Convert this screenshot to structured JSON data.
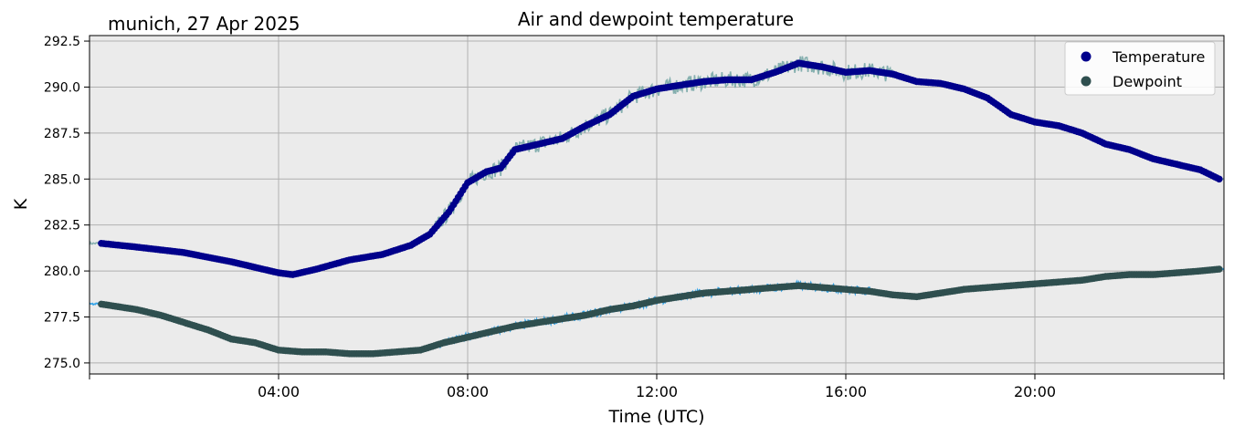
{
  "chart_data": {
    "type": "line",
    "title": "Air and dewpoint temperature",
    "subtitle": "munich, 27 Apr 2025",
    "xlabel": "Time (UTC)",
    "ylabel": "K",
    "xlim": [
      0,
      24
    ],
    "ylim": [
      274.4,
      292.8
    ],
    "grid": true,
    "legend_position": "top-right",
    "x_ticks": [
      {
        "value": 4,
        "label": "04:00"
      },
      {
        "value": 8,
        "label": "08:00"
      },
      {
        "value": 12,
        "label": "12:00"
      },
      {
        "value": 16,
        "label": "16:00"
      },
      {
        "value": 20,
        "label": "20:00"
      }
    ],
    "y_ticks": [
      {
        "value": 275.0,
        "label": "275.0"
      },
      {
        "value": 277.5,
        "label": "277.5"
      },
      {
        "value": 280.0,
        "label": "280.0"
      },
      {
        "value": 282.5,
        "label": "282.5"
      },
      {
        "value": 285.0,
        "label": "285.0"
      },
      {
        "value": 287.5,
        "label": "287.5"
      },
      {
        "value": 290.0,
        "label": "290.0"
      },
      {
        "value": 292.5,
        "label": "292.5"
      }
    ],
    "series": [
      {
        "name": "Temperature",
        "style": "markers",
        "color": "#00008b",
        "raw_color": "#7aa9a9",
        "x": [
          0.25,
          1.0,
          2.0,
          3.0,
          3.5,
          4.0,
          4.3,
          4.8,
          5.5,
          6.2,
          6.8,
          7.2,
          7.6,
          8.0,
          8.4,
          8.7,
          9.0,
          9.5,
          10.0,
          10.5,
          11.0,
          11.5,
          12.0,
          12.5,
          13.0,
          13.5,
          14.0,
          14.5,
          15.0,
          15.5,
          16.0,
          16.5,
          17.0,
          17.5,
          18.0,
          18.5,
          19.0,
          19.5,
          20.0,
          20.5,
          21.0,
          21.5,
          22.0,
          22.5,
          23.0,
          23.5,
          23.9
        ],
        "y": [
          281.5,
          281.3,
          281.0,
          280.5,
          280.2,
          279.9,
          279.8,
          280.1,
          280.6,
          280.9,
          281.4,
          282.0,
          283.2,
          284.8,
          285.4,
          285.6,
          286.6,
          286.9,
          287.2,
          287.9,
          288.5,
          289.5,
          289.9,
          290.1,
          290.3,
          290.4,
          290.4,
          290.8,
          291.3,
          291.1,
          290.8,
          290.9,
          290.7,
          290.3,
          290.2,
          289.9,
          289.4,
          288.5,
          288.1,
          287.9,
          287.5,
          286.9,
          286.6,
          286.1,
          285.8,
          285.5,
          285.0
        ]
      },
      {
        "name": "Dewpoint",
        "style": "markers",
        "color": "#2f4f4f",
        "raw_color": "#1e9be8",
        "x": [
          0.25,
          1.0,
          1.5,
          2.0,
          2.5,
          3.0,
          3.5,
          4.0,
          4.5,
          5.0,
          5.5,
          6.0,
          6.5,
          7.0,
          7.5,
          8.0,
          8.5,
          9.0,
          9.5,
          10.0,
          10.5,
          11.0,
          11.5,
          12.0,
          12.5,
          13.0,
          13.5,
          14.0,
          14.5,
          15.0,
          15.5,
          16.0,
          16.5,
          17.0,
          17.5,
          18.0,
          18.5,
          19.0,
          19.5,
          20.0,
          20.5,
          21.0,
          21.5,
          22.0,
          22.5,
          23.0,
          23.5,
          23.9
        ],
        "y": [
          278.2,
          277.9,
          277.6,
          277.2,
          276.8,
          276.3,
          276.1,
          275.7,
          275.6,
          275.6,
          275.5,
          275.5,
          275.6,
          275.7,
          276.1,
          276.4,
          276.7,
          277.0,
          277.2,
          277.4,
          277.6,
          277.9,
          278.1,
          278.4,
          278.6,
          278.8,
          278.9,
          279.0,
          279.1,
          279.2,
          279.1,
          279.0,
          278.9,
          278.7,
          278.6,
          278.8,
          279.0,
          279.1,
          279.2,
          279.3,
          279.4,
          279.5,
          279.7,
          279.8,
          279.8,
          279.9,
          280.0,
          280.1
        ]
      }
    ]
  }
}
